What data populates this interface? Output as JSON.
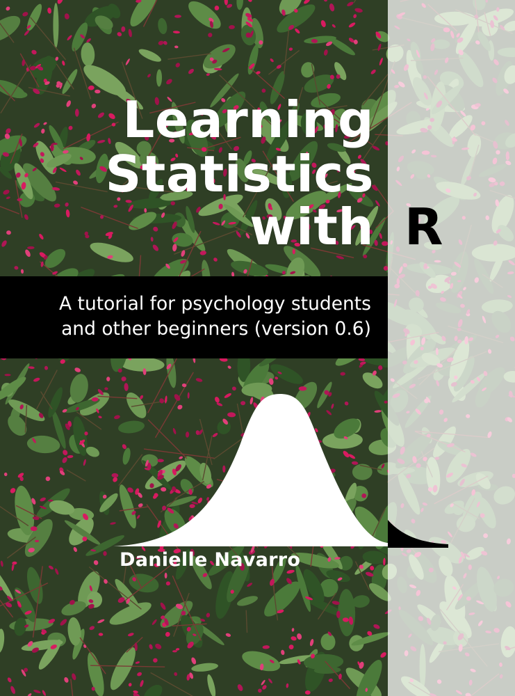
{
  "cover": {
    "title_lines": [
      "Learning",
      "Statistics",
      "with"
    ],
    "title_letter": "R",
    "subtitle_lines": [
      "A tutorial for psychology students",
      "and other beginners (version 0.6)"
    ],
    "author": "Danielle Navarro"
  },
  "colors": {
    "band": "#000000",
    "title_text": "#ffffff",
    "foliage_green": "#3f6a33",
    "bud_magenta": "#c2185b",
    "fade_overlay": "rgba(255,255,255,0.74)"
  },
  "graphic": {
    "background": "foliage-with-pink-buds-photo",
    "curve": "normal-distribution-curve"
  }
}
